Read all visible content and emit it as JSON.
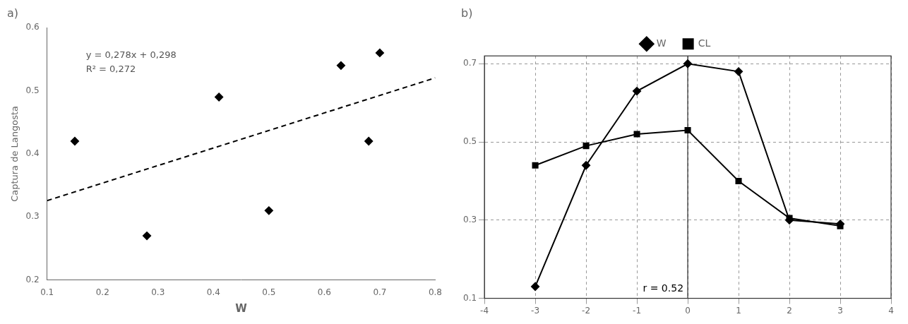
{
  "chart_data": [
    {
      "type": "scatter",
      "title": "a)",
      "xlabel": "W",
      "ylabel": "Captura de Langosta",
      "xlim": [
        0.1,
        0.8
      ],
      "ylim": [
        0.2,
        0.6
      ],
      "xticks": [
        0.1,
        0.2,
        0.3,
        0.4,
        0.5,
        0.6,
        0.7,
        0.8
      ],
      "yticks": [
        0.2,
        0.3,
        0.4,
        0.5,
        0.6
      ],
      "grid": false,
      "series": [
        {
          "type": "scatter",
          "marker": "diamond",
          "color": "#000000",
          "x": [
            0.15,
            0.28,
            0.41,
            0.5,
            0.63,
            0.68,
            0.7
          ],
          "values": [
            0.42,
            0.27,
            0.49,
            0.31,
            0.54,
            0.42,
            0.56
          ]
        },
        {
          "type": "line",
          "line_style": "dashed",
          "color": "#000000",
          "x": [
            0.1,
            0.8
          ],
          "values": [
            0.3258,
            0.5204
          ]
        }
      ],
      "annotations": [
        "y = 0,278x + 0,298",
        "R² = 0,272"
      ]
    },
    {
      "type": "line",
      "title": "b)",
      "x": [
        -3,
        -2,
        -1,
        0,
        1,
        2,
        3
      ],
      "xlim": [
        -4,
        4
      ],
      "ylim": [
        0.1,
        0.72
      ],
      "xticks": [
        -4,
        -3,
        -2,
        -1,
        0,
        1,
        2,
        3,
        4
      ],
      "yticks": [
        0.1,
        0.3,
        0.5,
        0.7
      ],
      "grid": true,
      "legend": "top",
      "series": [
        {
          "name": "W",
          "color": "#000000",
          "marker": "diamond",
          "line_style": "solid",
          "values": [
            0.13,
            0.44,
            0.63,
            0.7,
            0.68,
            0.3,
            0.29
          ]
        },
        {
          "name": "CL",
          "color": "#000000",
          "marker": "square",
          "line_style": "solid",
          "values": [
            0.44,
            0.49,
            0.52,
            0.53,
            0.4,
            0.305,
            0.285
          ]
        }
      ],
      "annotations": [
        "r = 0.52"
      ],
      "vlines": [
        0
      ]
    }
  ]
}
